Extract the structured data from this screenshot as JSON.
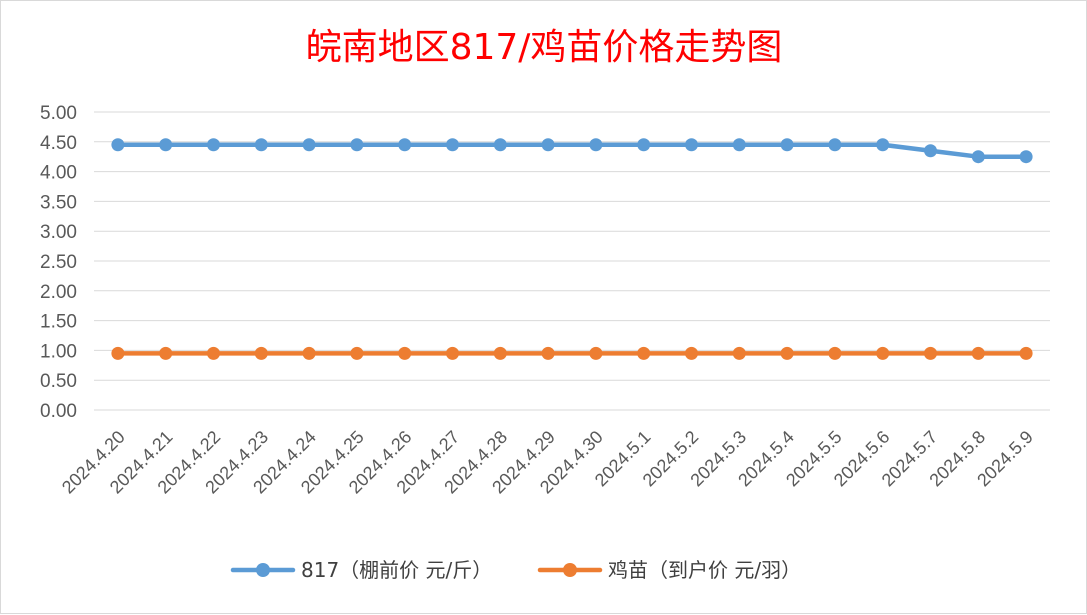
{
  "chart_data": {
    "type": "line",
    "title": "皖南地区817/鸡苗价格走势图",
    "categories": [
      "2024.4.20",
      "2024.4.21",
      "2024.4.22",
      "2024.4.23",
      "2024.4.24",
      "2024.4.25",
      "2024.4.26",
      "2024.4.27",
      "2024.4.28",
      "2024.4.29",
      "2024.4.30",
      "2024.5.1",
      "2024.5.2",
      "2024.5.3",
      "2024.5.4",
      "2024.5.5",
      "2024.5.6",
      "2024.5.7",
      "2024.5.8",
      "2024.5.9"
    ],
    "series": [
      {
        "name": "817（棚前价 元/斤）",
        "color": "#5b9bd5",
        "values": [
          4.45,
          4.45,
          4.45,
          4.45,
          4.45,
          4.45,
          4.45,
          4.45,
          4.45,
          4.45,
          4.45,
          4.45,
          4.45,
          4.45,
          4.45,
          4.45,
          4.45,
          4.35,
          4.25,
          4.25
        ]
      },
      {
        "name": "鸡苗（到户价 元/羽）",
        "color": "#ed7d31",
        "values": [
          0.95,
          0.95,
          0.95,
          0.95,
          0.95,
          0.95,
          0.95,
          0.95,
          0.95,
          0.95,
          0.95,
          0.95,
          0.95,
          0.95,
          0.95,
          0.95,
          0.95,
          0.95,
          0.95,
          0.95
        ]
      }
    ],
    "ylim": [
      0,
      5
    ],
    "yticks": [
      "0.00",
      "0.50",
      "1.00",
      "1.50",
      "2.00",
      "2.50",
      "3.00",
      "3.50",
      "4.00",
      "4.50",
      "5.00"
    ],
    "grid": true,
    "legend": "bottom",
    "title_color": "#ff0000"
  }
}
